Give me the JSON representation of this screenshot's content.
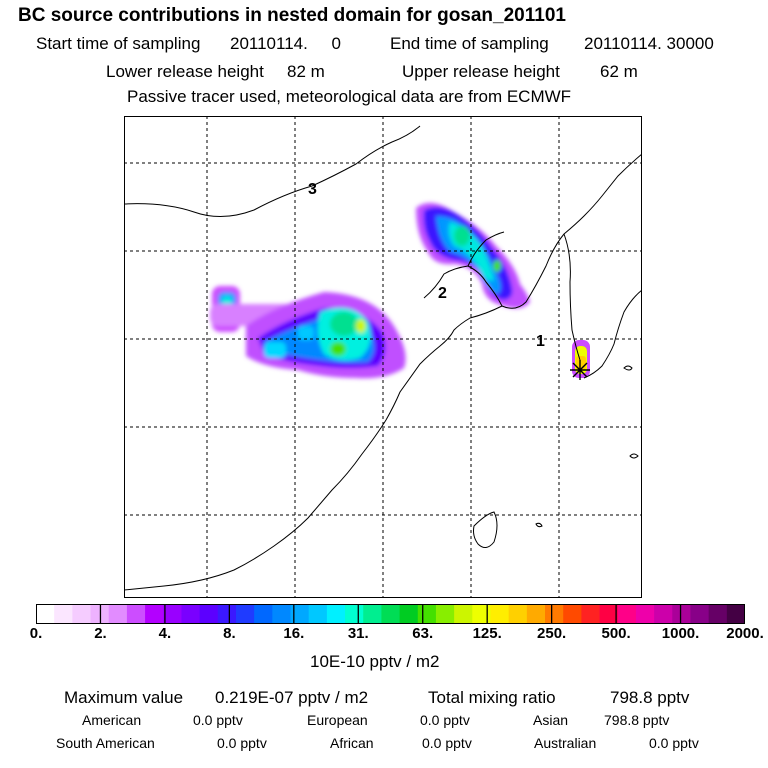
{
  "header": {
    "title": "BC  source contributions in nested domain for gosan_201101",
    "start_label": "Start time of sampling",
    "start_value": "20110114.     0",
    "end_label": "End time of sampling",
    "end_value": "20110114. 30000",
    "lower_label": "Lower release height",
    "lower_value": "82 m",
    "upper_label": "Upper release height",
    "upper_value": "62 m",
    "note": "Passive tracer used, meteorological data are from ECMWF"
  },
  "map": {
    "markers": [
      {
        "label": "1"
      },
      {
        "label": "2"
      },
      {
        "label": "3"
      }
    ]
  },
  "colorbar": {
    "ticks": [
      "0.",
      "2.",
      "4.",
      "8.",
      "16.",
      "31.",
      "63.",
      "125.",
      "250.",
      "500.",
      "1000.",
      "2000."
    ],
    "colors": [
      "#ffffff",
      "#fbe6ff",
      "#f5ccff",
      "#eeb2ff",
      "#e28cff",
      "#cc4dff",
      "#b300ff",
      "#9900ff",
      "#7a00ff",
      "#5c00ff",
      "#3b18ff",
      "#1f3bff",
      "#0068ff",
      "#0088ff",
      "#00a8ff",
      "#00c8ff",
      "#00f0ff",
      "#00ffd0",
      "#00ee90",
      "#00dd55",
      "#00cc22",
      "#44e000",
      "#88ee00",
      "#ccf500",
      "#eeff00",
      "#ffee00",
      "#ffd000",
      "#ffaa00",
      "#ff7a00",
      "#ff4a00",
      "#ff2222",
      "#ff0044",
      "#ff0088",
      "#ee00aa",
      "#cc00aa",
      "#aa0099",
      "#880088",
      "#660066",
      "#440044"
    ],
    "unit": "10E-10 pptv / m2"
  },
  "summary": {
    "max_label": "Maximum value",
    "max_value": "0.219E-07 pptv / m2",
    "total_label": "Total mixing ratio",
    "total_value": "798.8 pptv",
    "regions": [
      {
        "name": "American",
        "value": "0.0 pptv"
      },
      {
        "name": "European",
        "value": "0.0 pptv"
      },
      {
        "name": "Asian",
        "value": "798.8 pptv"
      },
      {
        "name": "South American",
        "value": "0.0 pptv"
      },
      {
        "name": "African",
        "value": "0.0 pptv"
      },
      {
        "name": "Australian",
        "value": "0.0 pptv"
      }
    ]
  }
}
